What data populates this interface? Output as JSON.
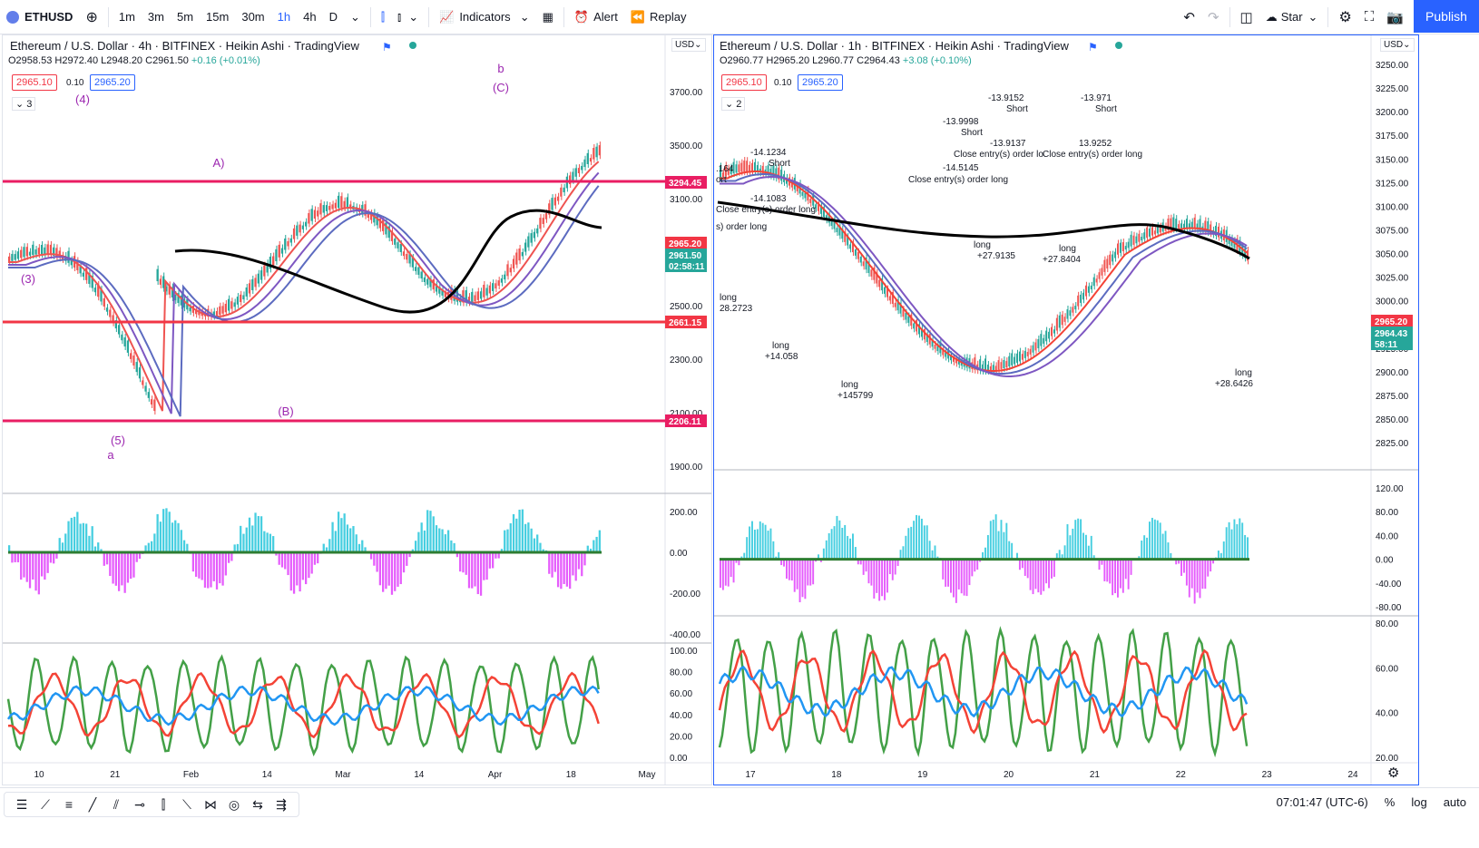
{
  "toolbar": {
    "symbol": "ETHUSD",
    "intervals": [
      "1m",
      "3m",
      "5m",
      "15m",
      "30m",
      "1h",
      "4h",
      "D"
    ],
    "active_interval": "1h",
    "indicators_label": "Indicators",
    "alert_label": "Alert",
    "replay_label": "Replay",
    "layout_name": "Star",
    "publish_label": "Publish"
  },
  "left_chart": {
    "title": "Ethereum / U.S. Dollar · 4h · BITFINEX · Heikin Ashi · TradingView",
    "ohlc": {
      "o": "O2958.53",
      "h": "H2972.40",
      "l": "L2948.20",
      "c": "C2961.50",
      "chg": "+0.16 (+0.01%)"
    },
    "bid": "2965.10",
    "spread": "0.10",
    "ask": "2965.20",
    "collapse_count": "3",
    "currency": "USD",
    "price_ticks": [
      "3700.00",
      "3500.00",
      "3100.00",
      "2700.00",
      "2500.00",
      "2300.00",
      "2100.00",
      "1900.00"
    ],
    "price_tags": [
      {
        "text": "3294.45",
        "color": "#e91e63"
      },
      {
        "text": "2965.20",
        "color": "#f23645"
      },
      {
        "text": "2961.50",
        "color": "#26a69a"
      },
      {
        "text": "02:58:11",
        "color": "#26a69a"
      },
      {
        "text": "2661.15",
        "color": "#f23645"
      },
      {
        "text": "2206.11",
        "color": "#e91e63"
      }
    ],
    "osc_ticks": [
      "200.00",
      "0.00",
      "-200.00",
      "-400.00"
    ],
    "rsi_ticks": [
      "100.00",
      "80.00",
      "60.00",
      "40.00",
      "20.00",
      "0.00"
    ],
    "time_ticks": [
      "10",
      "21",
      "Feb",
      "14",
      "Mar",
      "14",
      "Apr",
      "18",
      "May"
    ],
    "wave_labels": [
      "(4)",
      "(3)",
      "(5)",
      "a",
      "A)",
      "(B)",
      "b",
      "(C)"
    ]
  },
  "right_chart": {
    "title": "Ethereum / U.S. Dollar · 1h · BITFINEX · Heikin Ashi · TradingView",
    "ohlc": {
      "o": "O2960.77",
      "h": "H2965.20",
      "l": "L2960.77",
      "c": "C2964.43",
      "chg": "+3.08 (+0.10%)"
    },
    "bid": "2965.10",
    "spread": "0.10",
    "ask": "2965.20",
    "collapse_count": "2",
    "currency": "USD",
    "price_ticks": [
      "3250.00",
      "3225.00",
      "3200.00",
      "3175.00",
      "3150.00",
      "3125.00",
      "3100.00",
      "3075.00",
      "3050.00",
      "3025.00",
      "3000.00",
      "2975.00",
      "2925.00",
      "2900.00",
      "2875.00",
      "2850.00",
      "2825.00"
    ],
    "price_tags": [
      {
        "text": "2965.20",
        "color": "#f23645"
      },
      {
        "text": "2964.43",
        "color": "#26a69a"
      },
      {
        "text": "58:11",
        "color": "#26a69a"
      }
    ],
    "osc_ticks": [
      "120.00",
      "80.00",
      "40.00",
      "0.00",
      "-40.00",
      "-80.00"
    ],
    "rsi_ticks": [
      "80.00",
      "60.00",
      "40.00",
      "20.00"
    ],
    "time_ticks": [
      "17",
      "18",
      "19",
      "20",
      "21",
      "22",
      "23",
      "24"
    ],
    "trade_labels": [
      ".164",
      "ort",
      "-14.1234",
      "Short",
      "-14.1083",
      "Close entry(s) order long",
      "s) order long",
      "long",
      "28.2723",
      "long",
      "+14.058",
      "long",
      "+145799",
      "-13.9998",
      "Short",
      "-14.5145",
      "Close entry(s) order long",
      "-13.9152",
      "Short",
      "-13.9137",
      "Close entry(s) order lo",
      "long",
      "+27.9135",
      "-13.971",
      "Short",
      "13.9252",
      "Close entry(s) order long",
      "long",
      "+27.8404",
      "long",
      "+28.6426"
    ]
  },
  "status": {
    "time": "07:01:47 (UTC-6)",
    "percent": "%",
    "log": "log",
    "auto": "auto"
  }
}
